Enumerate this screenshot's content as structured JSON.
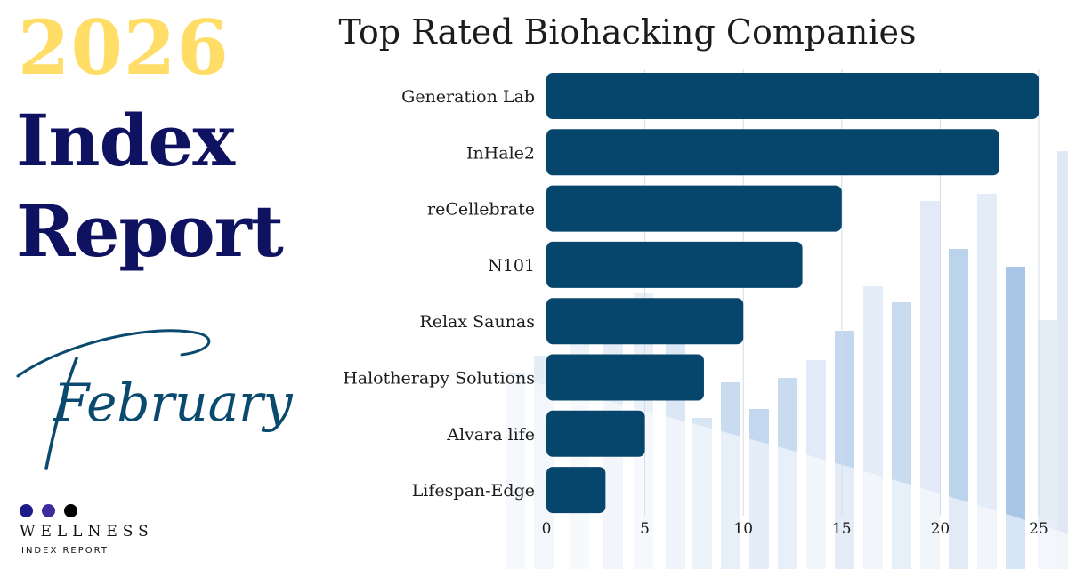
{
  "header": {
    "year": "2026",
    "title_line_1": "Index",
    "title_line_2": "Report",
    "month": "February"
  },
  "brand": {
    "name": "WELLNESS",
    "subtitle": "INDEX REPORT"
  },
  "colors": {
    "year": "#ffdd66",
    "title": "#0e1260",
    "script": "#0b4a6f",
    "bar": "#07466c",
    "dots": [
      "#1d1a8a",
      "#3c2f9c",
      "#000000"
    ]
  },
  "chart_data": {
    "type": "bar",
    "orientation": "horizontal",
    "title": "Top Rated Biohacking Companies",
    "categories": [
      "Generation Lab",
      "InHale2",
      "reCellebrate",
      "N101",
      "Relax Saunas",
      "Halotherapy Solutions",
      "Alvara life",
      "Lifespan-Edge"
    ],
    "values": [
      25,
      23,
      15,
      13,
      10,
      8,
      5,
      3
    ],
    "xlim": [
      0,
      25
    ],
    "xticks": [
      0,
      5,
      10,
      15,
      20,
      25
    ],
    "xtick_labels": [
      "0",
      "5",
      "10",
      "15",
      "20",
      "25"
    ],
    "xlabel": "",
    "ylabel": "",
    "grid": "vertical",
    "legend": "none"
  }
}
